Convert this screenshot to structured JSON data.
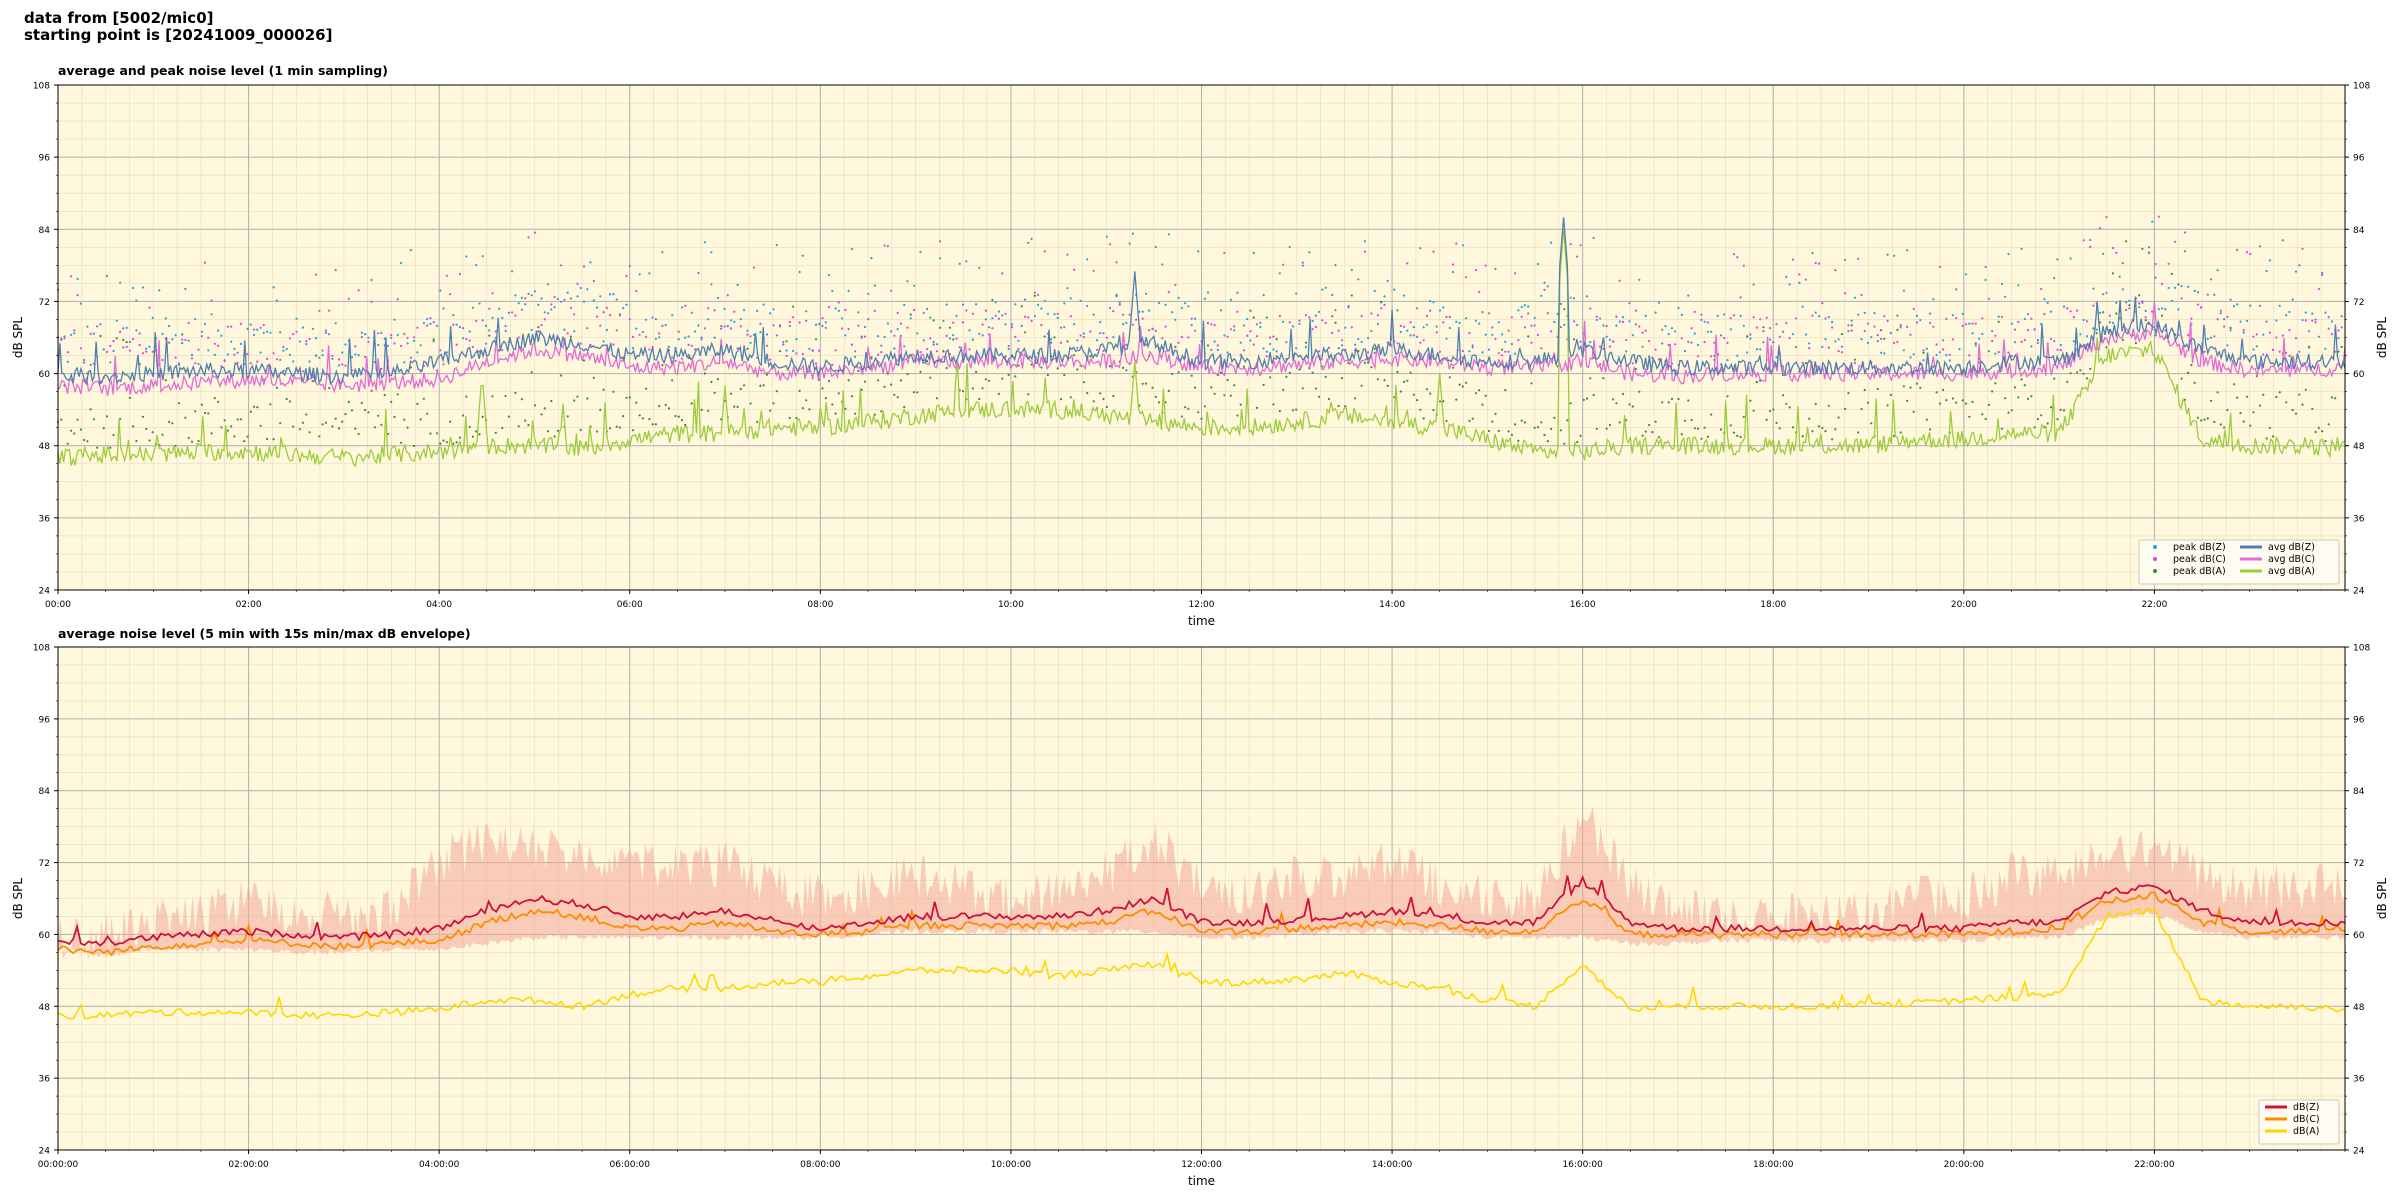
{
  "header": {
    "line1": "data from [5002/mic0]",
    "line2": "starting point is [20241009_000026]"
  },
  "chart_data": [
    {
      "type": "line",
      "title": "average and peak noise level (1 min sampling)",
      "xlabel": "time",
      "ylabel": "dB SPL",
      "xlim": [
        0,
        24
      ],
      "ylim": [
        24,
        108
      ],
      "y_ticks": [
        24,
        36,
        48,
        60,
        72,
        84,
        96,
        108
      ],
      "x_tick_labels": [
        "00:00",
        "02:00",
        "04:00",
        "06:00",
        "08:00",
        "10:00",
        "12:00",
        "14:00",
        "16:00",
        "18:00",
        "20:00",
        "22:00"
      ],
      "grid": true,
      "legend_position": "bottom-right",
      "legend": [
        {
          "name": "peak dB(Z)",
          "kind": "dot",
          "color": "#1fa0e0"
        },
        {
          "name": "peak dB(C)",
          "kind": "dot",
          "color": "#e040e0"
        },
        {
          "name": "peak dB(A)",
          "kind": "dot",
          "color": "#3a8a3a"
        },
        {
          "name": "avg dB(Z)",
          "kind": "line",
          "color": "#4f7fae"
        },
        {
          "name": "avg dB(C)",
          "kind": "line",
          "color": "#e36ad8"
        },
        {
          "name": "avg dB(A)",
          "kind": "line",
          "color": "#9ccc3c"
        }
      ],
      "x_hours": [
        0,
        0.5,
        1,
        1.5,
        2,
        2.5,
        3,
        3.5,
        4,
        4.5,
        5,
        5.5,
        6,
        6.5,
        7,
        7.5,
        8,
        8.5,
        9,
        9.5,
        10,
        10.5,
        11,
        11.5,
        12,
        12.5,
        13,
        13.5,
        14,
        14.5,
        15,
        15.5,
        16,
        16.5,
        17,
        17.5,
        18,
        18.5,
        19,
        19.5,
        20,
        20.5,
        21,
        21.5,
        22,
        22.5,
        23,
        23.5,
        24
      ],
      "series": [
        {
          "name": "avg dB(Z)",
          "color": "#4f7fae",
          "values": [
            59.5,
            59.5,
            60,
            60.5,
            60.5,
            60,
            59.5,
            60,
            62,
            64,
            66,
            65,
            63,
            63,
            64,
            62,
            61,
            62,
            63,
            63,
            63,
            63,
            64,
            65,
            62,
            62,
            63,
            63,
            64,
            63,
            62,
            62,
            64,
            62,
            61,
            61,
            61,
            61,
            61,
            61,
            61,
            62,
            62,
            67,
            68,
            64,
            62,
            62,
            62
          ]
        },
        {
          "name": "avg dB(C)",
          "color": "#e36ad8",
          "values": [
            58,
            57.5,
            58,
            58.5,
            59,
            58.5,
            58,
            58.5,
            59,
            62,
            64,
            63,
            61,
            61,
            62,
            60,
            60,
            61,
            62,
            62,
            62,
            62,
            62,
            63,
            61,
            61,
            61.5,
            62,
            62.5,
            62,
            61,
            61,
            62,
            60,
            59.5,
            60,
            60,
            60,
            60,
            60,
            60,
            60.5,
            61,
            66,
            67,
            62,
            60.5,
            60.5,
            61
          ]
        },
        {
          "name": "avg dB(A)",
          "color": "#9ccc3c",
          "values": [
            46,
            46.5,
            46.5,
            47,
            47,
            46.5,
            46,
            46.5,
            47,
            48,
            48,
            47.5,
            49,
            50,
            50,
            51,
            51,
            52,
            53,
            54,
            54,
            54,
            53,
            52,
            51,
            51,
            52,
            53,
            52,
            51,
            49,
            47,
            47,
            48,
            48,
            48,
            48,
            48,
            48,
            49,
            49,
            50,
            50,
            63,
            64,
            49,
            48,
            48,
            47.5
          ]
        }
      ],
      "spikes": [
        {
          "name": "avg dB(A)",
          "x": [
            4.45,
            5.3,
            7.0,
            11.3,
            14.5,
            15.8,
            21.4
          ],
          "values": [
            60,
            55,
            58,
            62,
            60,
            84,
            66
          ]
        },
        {
          "name": "avg dB(Z)",
          "x": [
            11.3,
            15.8,
            21.4
          ],
          "values": [
            77,
            86,
            72
          ]
        }
      ]
    },
    {
      "type": "line",
      "title": "average noise level (5 min with 15s min/max dB envelope)",
      "xlabel": "time",
      "ylabel": "dB SPL",
      "xlim": [
        0,
        24
      ],
      "ylim": [
        24,
        108
      ],
      "y_ticks": [
        24,
        36,
        48,
        60,
        72,
        84,
        96,
        108
      ],
      "x_tick_labels": [
        "00:00:00",
        "02:00:00",
        "04:00:00",
        "06:00:00",
        "08:00:00",
        "10:00:00",
        "12:00:00",
        "14:00:00",
        "16:00:00",
        "18:00:00",
        "20:00:00",
        "22:00:00"
      ],
      "grid": true,
      "legend_position": "bottom-right",
      "legend": [
        {
          "name": "dB(Z)",
          "kind": "line",
          "color": "#d0103a"
        },
        {
          "name": "dB(C)",
          "kind": "line",
          "color": "#ff8c00"
        },
        {
          "name": "dB(A)",
          "kind": "line",
          "color": "#ffd700"
        }
      ],
      "envelope_color": "#f4a89a",
      "x_hours": [
        0,
        0.5,
        1,
        1.5,
        2,
        2.5,
        3,
        3.5,
        4,
        4.5,
        5,
        5.5,
        6,
        6.5,
        7,
        7.5,
        8,
        8.5,
        9,
        9.5,
        10,
        10.5,
        11,
        11.5,
        12,
        12.5,
        13,
        13.5,
        14,
        14.5,
        15,
        15.5,
        16,
        16.5,
        17,
        17.5,
        18,
        18.5,
        19,
        19.5,
        20,
        20.5,
        21,
        21.5,
        22,
        22.5,
        23,
        23.5,
        24
      ],
      "envelope_max": [
        63,
        64,
        66,
        67,
        70,
        68,
        67,
        68,
        76,
        80,
        78,
        77,
        77,
        75,
        76,
        72,
        70,
        72,
        74,
        72,
        70,
        71,
        74,
        80,
        72,
        71,
        74,
        73,
        76,
        72,
        70,
        70,
        84,
        72,
        68,
        67,
        67,
        67,
        68,
        70,
        70,
        74,
        74,
        76,
        78,
        74,
        72,
        72,
        72
      ],
      "envelope_min": [
        57,
        56,
        57,
        57,
        57,
        56.5,
        56.5,
        57,
        57,
        58,
        59,
        59,
        59,
        59,
        59,
        59,
        59,
        59.5,
        60,
        60,
        60,
        60,
        60,
        60,
        59,
        59,
        59.5,
        60,
        60,
        60,
        59,
        59,
        59,
        58,
        58,
        58.5,
        58.5,
        58.5,
        58.5,
        58.5,
        58.5,
        59,
        59,
        62,
        63,
        60,
        59,
        59,
        59
      ],
      "series": [
        {
          "name": "dB(Z)",
          "color": "#d0103a",
          "values": [
            59,
            58.5,
            59.5,
            60,
            60.5,
            60,
            59.5,
            60,
            61,
            64,
            66,
            65,
            63,
            63,
            64,
            62,
            61,
            62,
            63,
            63,
            63,
            63,
            64,
            66,
            62,
            62,
            62.5,
            63,
            64,
            63,
            62,
            62,
            69,
            62,
            61,
            61,
            61,
            61,
            61,
            61,
            61,
            62,
            62,
            67,
            68,
            64,
            62,
            62,
            62
          ]
        },
        {
          "name": "dB(C)",
          "color": "#ff8c00",
          "values": [
            57.5,
            57,
            58,
            58.5,
            59,
            58.5,
            58,
            58.5,
            59,
            62,
            64,
            63,
            61,
            61,
            62,
            60.5,
            60,
            60.5,
            61.5,
            61.5,
            61.5,
            61.5,
            62,
            64,
            60.5,
            60.5,
            61,
            61.5,
            62,
            61.5,
            60.5,
            60.5,
            66,
            60,
            60,
            60,
            60,
            60,
            60,
            60,
            60,
            60.5,
            61,
            65.5,
            66.5,
            62,
            60.5,
            60.5,
            61
          ]
        },
        {
          "name": "dB(A)",
          "color": "#ffd700",
          "values": [
            46.5,
            46.5,
            47,
            47,
            47,
            46.5,
            46.5,
            47,
            47.5,
            49,
            49,
            48,
            50,
            51,
            51,
            52,
            52,
            53,
            54,
            54,
            54,
            53,
            54,
            55,
            52,
            52,
            52.5,
            53.5,
            52,
            51,
            49,
            48,
            55,
            47.5,
            48,
            48,
            48,
            48,
            48.5,
            48.5,
            49,
            49.5,
            50,
            63,
            64,
            49,
            48,
            48,
            47.5
          ]
        }
      ]
    }
  ]
}
